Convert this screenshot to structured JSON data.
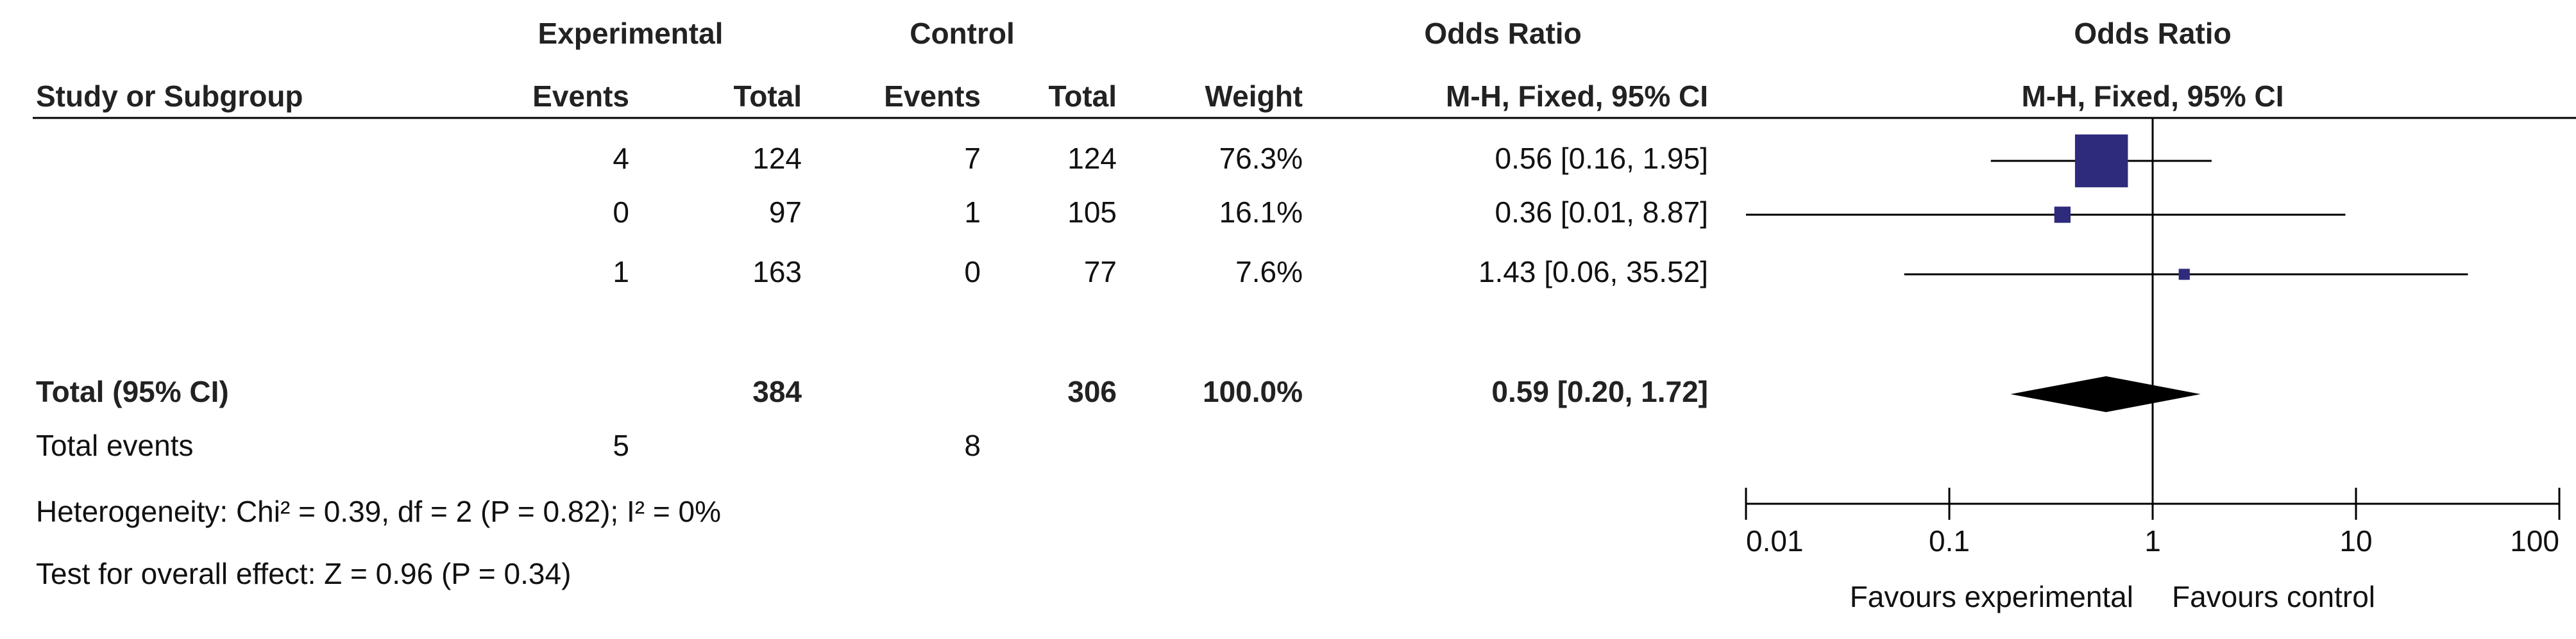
{
  "chart_data": {
    "type": "forest",
    "column_groups": [
      "Experimental",
      "Control",
      "Odds Ratio",
      "Odds Ratio"
    ],
    "columns": [
      "Study or Subgroup",
      "Events",
      "Total",
      "Events",
      "Total",
      "Weight",
      "M-H, Fixed, 95% CI",
      "M-H, Fixed, 95% CI"
    ],
    "studies": [
      {
        "events_exp": 4,
        "total_exp": 124,
        "events_ctrl": 7,
        "total_ctrl": 124,
        "weight": 76.3,
        "weight_label": "76.3%",
        "or": 0.56,
        "ci": [
          0.16,
          1.95
        ],
        "ci_label": "0.56 [0.16, 1.95]"
      },
      {
        "events_exp": 0,
        "total_exp": 97,
        "events_ctrl": 1,
        "total_ctrl": 105,
        "weight": 16.1,
        "weight_label": "16.1%",
        "or": 0.36,
        "ci": [
          0.01,
          8.87
        ],
        "ci_label": "0.36 [0.01, 8.87]"
      },
      {
        "events_exp": 1,
        "total_exp": 163,
        "events_ctrl": 0,
        "total_ctrl": 77,
        "weight": 7.6,
        "weight_label": "7.6%",
        "or": 1.43,
        "ci": [
          0.06,
          35.52
        ],
        "ci_label": "1.43 [0.06, 35.52]"
      }
    ],
    "total": {
      "label": "Total (95% CI)",
      "total_exp": 384,
      "total_ctrl": 306,
      "weight": 100.0,
      "weight_label": "100.0%",
      "or": 0.59,
      "ci": [
        0.2,
        1.72
      ],
      "ci_label": "0.59 [0.20, 1.72]"
    },
    "total_events": {
      "label": "Total events",
      "exp": 5,
      "ctrl": 8
    },
    "heterogeneity": "Heterogeneity: Chi² = 0.39, df = 2 (P = 0.82); I² = 0%",
    "overall_effect": "Test for overall effect: Z = 0.96 (P = 0.34)",
    "xlim": [
      0.01,
      100
    ],
    "xticks": [
      0.01,
      0.1,
      1,
      10,
      100
    ],
    "log_x": true,
    "x_labels": [
      "Favours experimental",
      "Favours control"
    ],
    "color": "#2e2a7c",
    "diamond_color": "#000000"
  }
}
